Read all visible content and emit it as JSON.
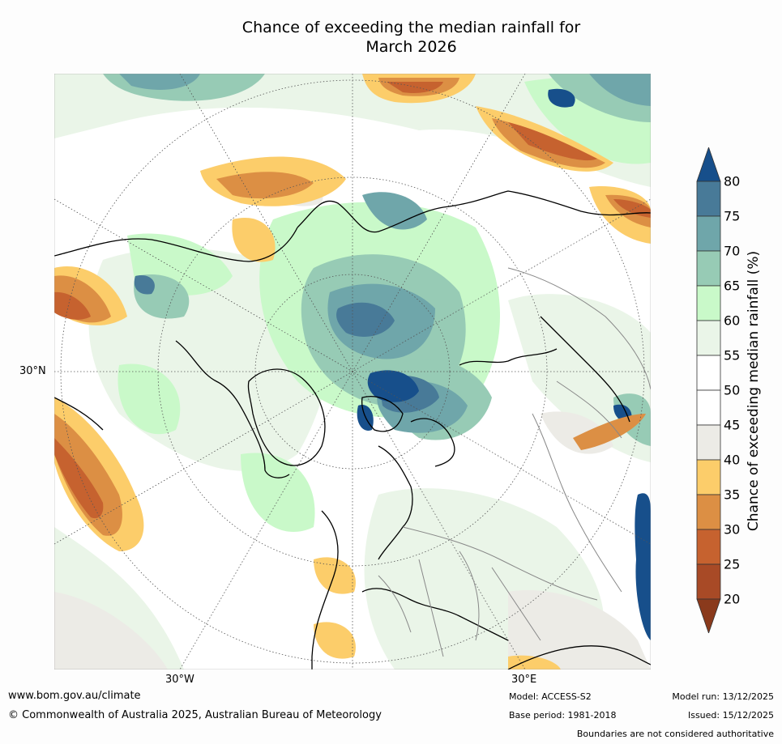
{
  "title": {
    "line1": "Chance of exceeding the median rainfall for",
    "line2": "March 2026"
  },
  "map": {
    "projection": "north polar stereographic",
    "longitude_labels": [
      "30°W",
      "30°E"
    ],
    "latitude_labels": [
      "30°N"
    ]
  },
  "colorbar": {
    "label": "Chance of exceeding median rainfall (%)",
    "ticks": [
      "20",
      "25",
      "30",
      "35",
      "40",
      "45",
      "50",
      "55",
      "60",
      "65",
      "70",
      "75",
      "80"
    ],
    "bins": [
      {
        "range": "<20",
        "color": "#8a3a1c"
      },
      {
        "range": "20-25",
        "color": "#a84a26"
      },
      {
        "range": "25-30",
        "color": "#c6622f"
      },
      {
        "range": "30-35",
        "color": "#dc8f44"
      },
      {
        "range": "35-40",
        "color": "#fccd6a"
      },
      {
        "range": "40-45",
        "color": "#ecebe6"
      },
      {
        "range": "45-50",
        "color": "#ffffff"
      },
      {
        "range": "50-55",
        "color": "#ffffff"
      },
      {
        "range": "55-60",
        "color": "#eaf5e8"
      },
      {
        "range": "60-65",
        "color": "#c9f9c9"
      },
      {
        "range": "65-70",
        "color": "#97cbb5"
      },
      {
        "range": "70-75",
        "color": "#6fa6aa"
      },
      {
        "range": "75-80",
        "color": "#487a98"
      },
      {
        "range": ">80",
        "color": "#174f8b"
      }
    ]
  },
  "footer": {
    "website": "www.bom.gov.au/climate",
    "copyright": "© Commonwealth of Australia 2025, Australian Bureau of Meteorology",
    "model": "Model: ACCESS-S2",
    "base_period": "Base period: 1981-2018",
    "model_run": "Model run: 13/12/2025",
    "issued": "Issued: 15/12/2025",
    "disclaimer": "Boundaries are not considered authoritative"
  }
}
